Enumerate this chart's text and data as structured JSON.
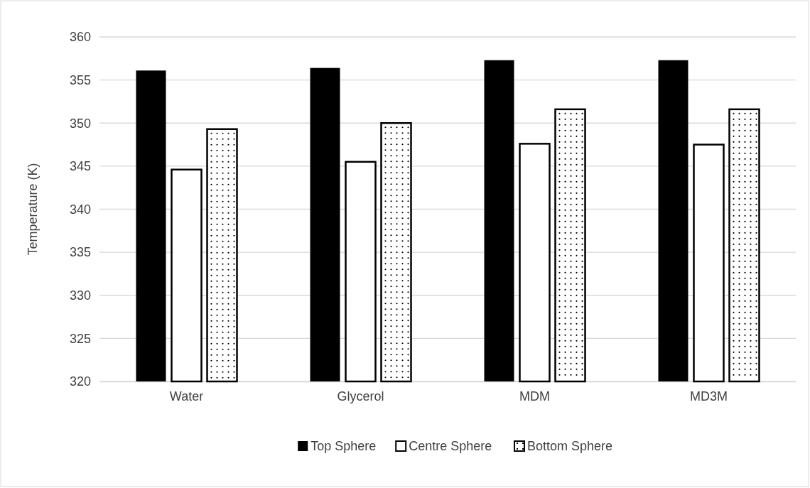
{
  "chart_data": {
    "type": "bar",
    "ylabel": "Temperature (K)",
    "categories": [
      "Water",
      "Glycerol",
      "MDM",
      "MD3M"
    ],
    "series": [
      {
        "name": "Top Sphere",
        "color": "#000000",
        "values": [
          356.1,
          356.4,
          357.3,
          357.3
        ]
      },
      {
        "name": "Centre Sphere",
        "color": "#ffffff",
        "values": [
          344.6,
          345.5,
          347.6,
          347.5
        ]
      },
      {
        "name": "Bottom Sphere",
        "color": "#ffffff",
        "values": [
          349.3,
          350.0,
          351.6,
          351.6
        ]
      }
    ],
    "ylim": [
      320,
      360
    ],
    "yticks": [
      320,
      325,
      330,
      335,
      340,
      345,
      350,
      355,
      360
    ],
    "grid": "y",
    "legend": "bottom"
  }
}
